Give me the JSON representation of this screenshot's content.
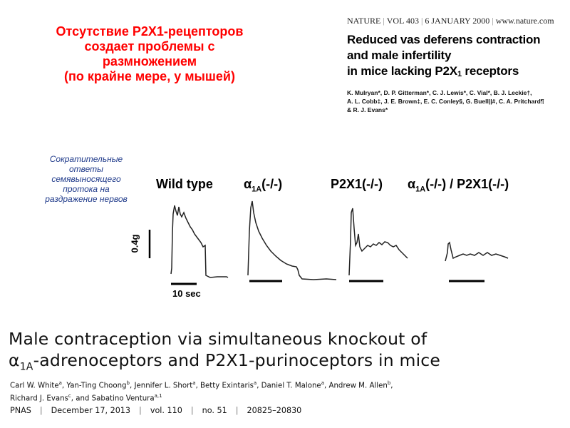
{
  "russian_title": {
    "lines": [
      "Отсутствие  P2X1-рецепторов",
      "создает проблемы с",
      "размножением",
      "(по крайне мере, у мышей)"
    ]
  },
  "nature_paper": {
    "journal": "NATURE",
    "volume": "VOL 403",
    "date": "6 JANUARY 2000",
    "url": "www.nature.com",
    "title_line1": "Reduced vas deferens contraction",
    "title_line2": "and male infertility",
    "title_line3_pre": "in mice lacking P2X",
    "title_line3_sub": "1",
    "title_line3_post": " receptors",
    "authors_line1": "K.  Mulryan*, D. P. Gitterman*, C. J. Lewis*, C. Vial*, B. J. Leckie†,",
    "authors_line2": "A. L. Cobb‡, J. E. Brown‡, E. C. Conley§, G. Buell||#, C. A. Pritchard¶",
    "authors_line3": "& R. J. Evans*"
  },
  "caption": {
    "lines": [
      "Сократительные",
      "ответы",
      "семявыносящего",
      "протока на",
      "раздражение  нервов"
    ]
  },
  "figure": {
    "labels": {
      "wild_type": "Wild type",
      "alpha_pre": "α",
      "alpha_sub": "1A",
      "alpha_post": "(-/-)",
      "p2x1": "P2X1(-/-)",
      "double_pre": "α",
      "double_sub": "1A",
      "double_post": "(-/-) / P2X1(-/-)"
    },
    "scale_y": "0.4g",
    "scale_x": "10 sec"
  },
  "pnas_paper": {
    "title_line1": "Male contraception via simultaneous knockout of",
    "title_line2_pre": "α",
    "title_line2_sub": "1A",
    "title_line2_post": "-adrenoceptors and P2X1-purinoceptors in mice",
    "authors": [
      {
        "name": "Carl W. White",
        "aff": "a"
      },
      {
        "name": "Yan-Ting Choong",
        "aff": "b"
      },
      {
        "name": "Jennifer L. Short",
        "aff": "a"
      },
      {
        "name": "Betty Exintaris",
        "aff": "a"
      },
      {
        "name": "Daniel T. Malone",
        "aff": "a"
      },
      {
        "name": "Andrew M. Allen",
        "aff": "b"
      },
      {
        "name": "Richard J. Evans",
        "aff": "c"
      },
      {
        "name": "Sabatino Ventura",
        "aff": "a,1"
      }
    ],
    "journal": "PNAS",
    "date": "December 17, 2013",
    "volume": "vol. 110",
    "number": "no. 51",
    "pages": "20825–20830"
  }
}
